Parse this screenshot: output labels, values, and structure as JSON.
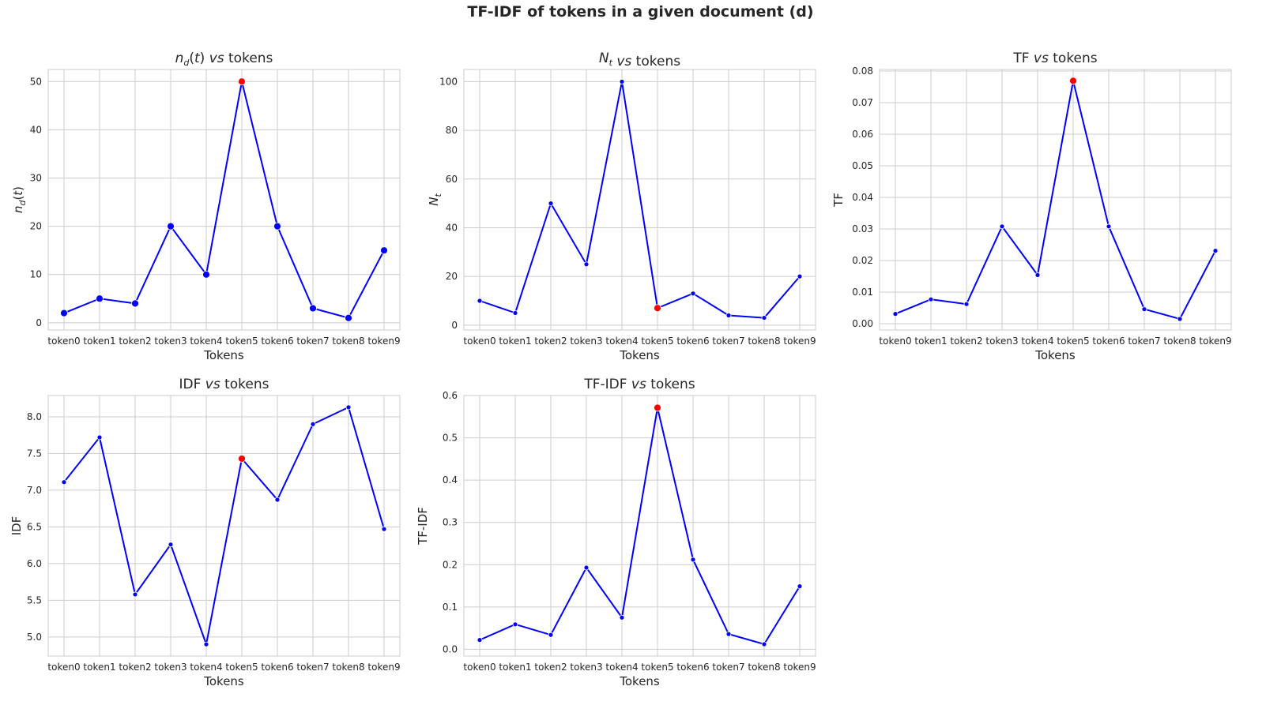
{
  "figure": {
    "suptitle": "TF-IDF of tokens in a given document (d)"
  },
  "colors": {
    "line": "#0000ff",
    "highlight": "#ff0000",
    "grid": "#cccccc",
    "text": "#262626"
  },
  "chart_data": [
    {
      "type": "line",
      "title": "n_d(t) vs tokens",
      "xlabel": "Tokens",
      "ylabel": "n_d(t)",
      "categories": [
        "token0",
        "token1",
        "token2",
        "token3",
        "token4",
        "token5",
        "token6",
        "token7",
        "token8",
        "token9"
      ],
      "values": [
        2,
        5,
        4,
        20,
        10,
        50,
        20,
        3,
        1,
        15
      ],
      "highlight_index": 5,
      "ylim": [
        -1.5,
        52.5
      ],
      "yticks": [
        "0",
        "10",
        "20",
        "30",
        "40",
        "50"
      ],
      "grid": true
    },
    {
      "type": "line",
      "title": "N_t vs tokens",
      "xlabel": "Tokens",
      "ylabel": "N_t",
      "categories": [
        "token0",
        "token1",
        "token2",
        "token3",
        "token4",
        "token5",
        "token6",
        "token7",
        "token8",
        "token9"
      ],
      "values": [
        10,
        5,
        50,
        25,
        100,
        7,
        13,
        4,
        3,
        20
      ],
      "highlight_index": 5,
      "ylim": [
        -2,
        105
      ],
      "yticks": [
        "0",
        "20",
        "40",
        "60",
        "80",
        "100"
      ],
      "grid": true
    },
    {
      "type": "line",
      "title": "TF vs tokens",
      "xlabel": "Tokens",
      "ylabel": "TF",
      "categories": [
        "token0",
        "token1",
        "token2",
        "token3",
        "token4",
        "token5",
        "token6",
        "token7",
        "token8",
        "token9"
      ],
      "values": [
        0.0031,
        0.0077,
        0.0062,
        0.0308,
        0.0154,
        0.0769,
        0.0308,
        0.0046,
        0.0015,
        0.0231
      ],
      "highlight_index": 5,
      "ylim": [
        -0.002,
        0.0805
      ],
      "yticks": [
        "0.00",
        "0.01",
        "0.02",
        "0.03",
        "0.04",
        "0.05",
        "0.06",
        "0.07",
        "0.08"
      ],
      "grid": true
    },
    {
      "type": "line",
      "title": "IDF vs tokens",
      "xlabel": "Tokens",
      "ylabel": "IDF",
      "categories": [
        "token0",
        "token1",
        "token2",
        "token3",
        "token4",
        "token5",
        "token6",
        "token7",
        "token8",
        "token9"
      ],
      "values": [
        7.11,
        7.72,
        5.58,
        6.26,
        4.9,
        7.43,
        6.87,
        7.9,
        8.13,
        6.47
      ],
      "highlight_index": 5,
      "ylim": [
        4.74,
        8.29
      ],
      "yticks": [
        "5.0",
        "5.5",
        "6.0",
        "6.5",
        "7.0",
        "7.5",
        "8.0"
      ],
      "grid": true
    },
    {
      "type": "line",
      "title": "TF-IDF vs tokens",
      "xlabel": "Tokens",
      "ylabel": "TF-IDF",
      "categories": [
        "token0",
        "token1",
        "token2",
        "token3",
        "token4",
        "token5",
        "token6",
        "token7",
        "token8",
        "token9"
      ],
      "values": [
        0.022,
        0.059,
        0.034,
        0.193,
        0.075,
        0.571,
        0.212,
        0.036,
        0.012,
        0.149
      ],
      "highlight_index": 5,
      "ylim": [
        -0.016,
        0.6
      ],
      "yticks": [
        "0.0",
        "0.1",
        "0.2",
        "0.3",
        "0.4",
        "0.5",
        "0.6"
      ],
      "grid": true
    }
  ]
}
